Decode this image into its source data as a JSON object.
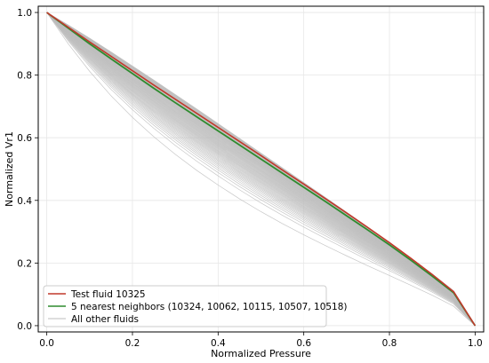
{
  "chart_data": {
    "type": "line",
    "title": "",
    "xlabel": "Normalized Pressure",
    "ylabel": "Normalized Vr1",
    "xlim": [
      -0.02,
      1.02
    ],
    "ylim": [
      -0.02,
      1.02
    ],
    "xticks": [
      "0.0",
      "0.2",
      "0.4",
      "0.6",
      "0.8",
      "1.0"
    ],
    "yticks": [
      "0.0",
      "0.2",
      "0.4",
      "0.6",
      "0.8",
      "1.0"
    ],
    "grid": true,
    "legend_position": "lower-left",
    "series": [
      {
        "name": "Test fluid 10325",
        "color": "#c0392b",
        "x": [
          0.0,
          0.05,
          0.1,
          0.15,
          0.2,
          0.25,
          0.3,
          0.35,
          0.4,
          0.45,
          0.5,
          0.55,
          0.6,
          0.65,
          0.7,
          0.75,
          0.8,
          0.85,
          0.9,
          0.95,
          1.0
        ],
        "y": [
          1.0,
          0.953,
          0.906,
          0.86,
          0.814,
          0.768,
          0.723,
          0.678,
          0.633,
          0.588,
          0.543,
          0.497,
          0.452,
          0.406,
          0.36,
          0.313,
          0.265,
          0.215,
          0.163,
          0.108,
          0.0
        ]
      },
      {
        "name": "5 nearest neighbors (10324, 10062, 10115, 10507, 10518)",
        "color": "#2e8b2e",
        "x": [
          0.0,
          0.05,
          0.1,
          0.15,
          0.2,
          0.25,
          0.3,
          0.35,
          0.4,
          0.45,
          0.5,
          0.55,
          0.6,
          0.65,
          0.7,
          0.75,
          0.8,
          0.85,
          0.9,
          0.95,
          1.0
        ],
        "y": [
          1.0,
          0.95,
          0.9,
          0.852,
          0.805,
          0.758,
          0.712,
          0.667,
          0.622,
          0.577,
          0.532,
          0.487,
          0.442,
          0.397,
          0.351,
          0.305,
          0.258,
          0.209,
          0.158,
          0.105,
          0.0
        ]
      },
      {
        "name": "All other fluids",
        "color": "#bdbdbd",
        "y_band_lower": [
          1.0,
          0.9,
          0.812,
          0.734,
          0.665,
          0.603,
          0.547,
          0.496,
          0.449,
          0.405,
          0.364,
          0.326,
          0.29,
          0.256,
          0.223,
          0.191,
          0.16,
          0.129,
          0.097,
          0.062,
          0.0
        ],
        "y_band_upper": [
          1.0,
          0.96,
          0.918,
          0.874,
          0.829,
          0.784,
          0.738,
          0.692,
          0.645,
          0.598,
          0.551,
          0.504,
          0.457,
          0.41,
          0.362,
          0.314,
          0.266,
          0.216,
          0.165,
          0.111,
          0.0
        ]
      }
    ]
  }
}
